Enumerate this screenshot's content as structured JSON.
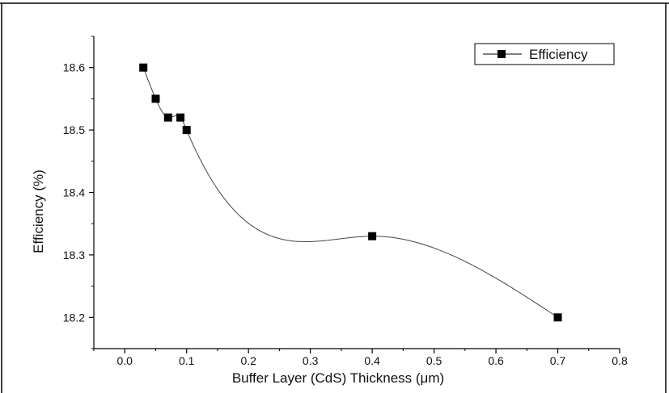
{
  "chart_data": {
    "type": "scatter",
    "title": "",
    "xlabel": "Buffer Layer (CdS) Thickness (μm)",
    "ylabel": "Efficiency (%)",
    "xlim": [
      -0.05,
      0.8
    ],
    "ylim": [
      18.15,
      18.65
    ],
    "xticks": [
      "0.0",
      "0.1",
      "0.2",
      "0.3",
      "0.4",
      "0.5",
      "0.6",
      "0.7",
      "0.8"
    ],
    "yticks": [
      "18.2",
      "18.3",
      "18.4",
      "18.5",
      "18.6"
    ],
    "legend": "top-right",
    "grid": false,
    "smoothed_line": true,
    "series": [
      {
        "name": "Efficiency",
        "color": "#000000",
        "marker": "square",
        "x": [
          0.03,
          0.05,
          0.07,
          0.09,
          0.1,
          0.4,
          0.7
        ],
        "y": [
          18.6,
          18.55,
          18.52,
          18.52,
          18.5,
          18.33,
          18.2
        ]
      }
    ]
  }
}
